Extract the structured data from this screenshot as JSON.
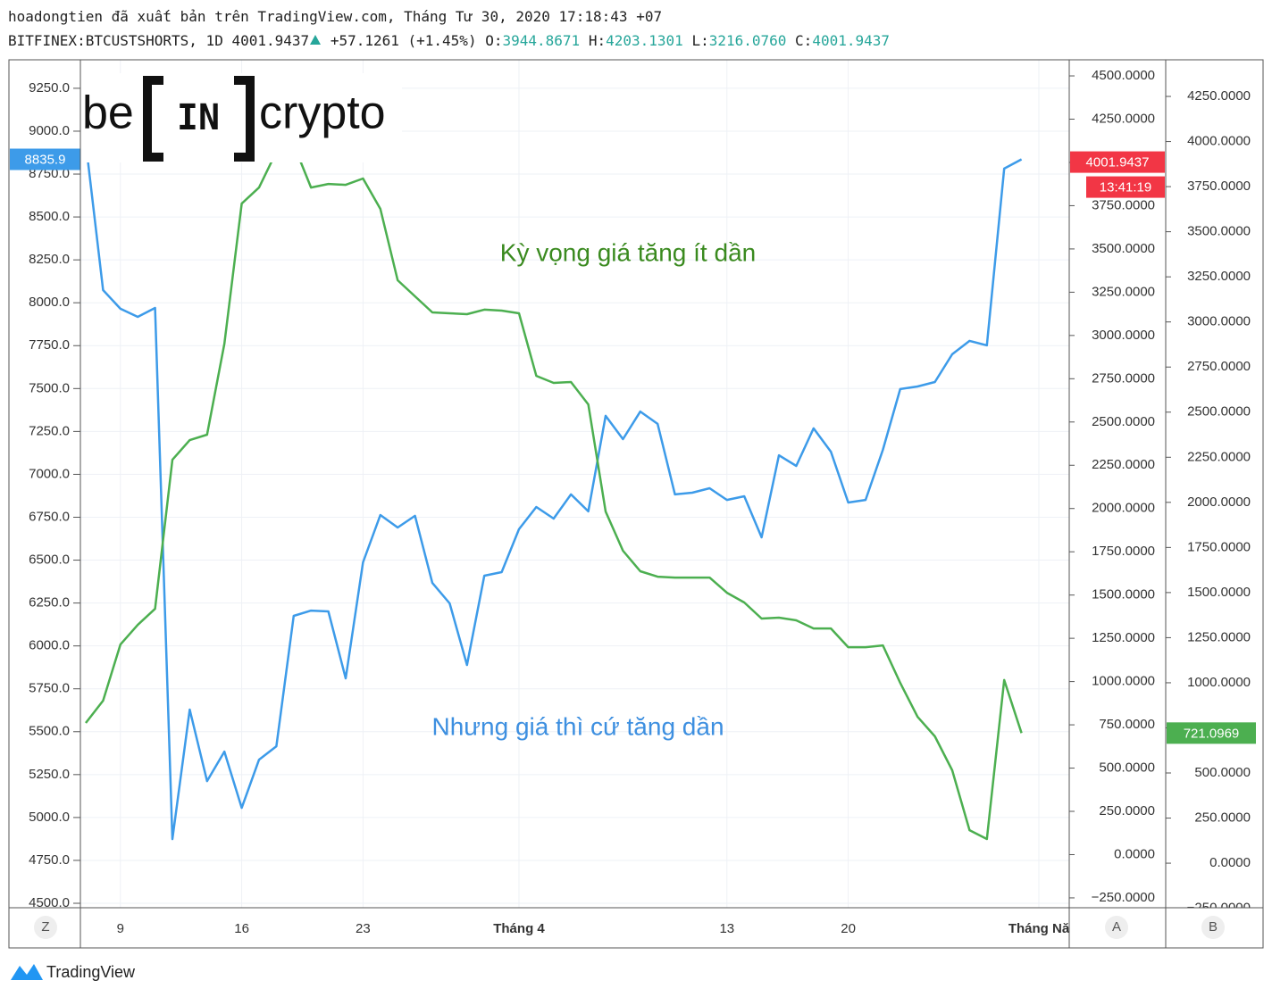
{
  "header": {
    "line1": "hoadongtien đã xuất bản trên TradingView.com, Tháng Tư 30, 2020 17:18:43 +07",
    "symbol": "BITFINEX:BTCUSTSHORTS, 1D",
    "last": "4001.9437",
    "change": "+57.1261 (+1.45%)",
    "ohlc": [
      {
        "key": "O:",
        "value": "3944.8671"
      },
      {
        "key": "H:",
        "value": "4203.1301"
      },
      {
        "key": "L:",
        "value": "3216.0760"
      },
      {
        "key": "C:",
        "value": "4001.9437"
      }
    ]
  },
  "logo": {
    "left": "be",
    "mid": "IN",
    "right": "crypto"
  },
  "footer": "TradingView",
  "buttons": [
    "Z",
    "A",
    "B"
  ],
  "chart_data": {
    "type": "line",
    "annotations": [
      "Kỳ vọng giá tăng ít dần",
      "Nhưng giá thì cứ tăng dần"
    ],
    "categories": [
      null,
      null,
      "9",
      null,
      null,
      null,
      null,
      null,
      null,
      "16",
      null,
      null,
      null,
      null,
      null,
      null,
      "23",
      null,
      null,
      null,
      null,
      null,
      null,
      null,
      null,
      "Tháng 4",
      null,
      null,
      null,
      null,
      null,
      null,
      null,
      null,
      null,
      null,
      null,
      "13",
      null,
      null,
      null,
      null,
      null,
      null,
      "20",
      null,
      null,
      null,
      null,
      null,
      null,
      null,
      null,
      null,
      null,
      "Tháng Nă"
    ],
    "series": [
      {
        "color": "#3d9be9",
        "axis": "y",
        "values": [
          8933,
          8074,
          7965,
          7918,
          7970,
          4874,
          5629,
          5212,
          5384,
          5056,
          5337,
          5415,
          6175,
          6206,
          6201,
          5811,
          6487,
          6763,
          6690,
          6758,
          6367,
          6248,
          5889,
          6409,
          6430,
          6680,
          6810,
          6742,
          6883,
          6784,
          7341,
          7205,
          7366,
          7294,
          6883,
          6893,
          6919,
          6851,
          6872,
          6633,
          7111,
          7049,
          7268,
          7132,
          6836,
          6851,
          7143,
          7497,
          7512,
          7538,
          7700,
          7778,
          7752,
          8782,
          8835.9,
          null
        ]
      },
      {
        "color": "#4caf50",
        "axis": "y3",
        "values": [
          777,
          901,
          1212,
          1321,
          1410,
          2236,
          2345,
          2375,
          2879,
          3656,
          3745,
          3943,
          3983,
          3745,
          3765,
          3760,
          3795,
          3627,
          3231,
          3142,
          3053,
          3048,
          3043,
          3068,
          3063,
          3048,
          2701,
          2662,
          2667,
          2543,
          1949,
          1732,
          1618,
          1588,
          1583,
          1583,
          1583,
          1499,
          1445,
          1356,
          1361,
          1346,
          1301,
          1301,
          1197,
          1197,
          1207,
          999,
          811,
          703,
          515,
          183,
          134,
          1015,
          721.0969,
          null
        ]
      }
    ],
    "y2_marker": {
      "value": 4001.9437,
      "color": "#f23645",
      "countdown": "13:41:19"
    },
    "ylim": [
      4474,
      9416
    ],
    "yticks": [
      {
        "value": 4500,
        "label": "4500.0"
      },
      {
        "value": 4750,
        "label": "4750.0"
      },
      {
        "value": 5000,
        "label": "5000.0"
      },
      {
        "value": 5250,
        "label": "5250.0"
      },
      {
        "value": 5500,
        "label": "5500.0"
      },
      {
        "value": 5750,
        "label": "5750.0"
      },
      {
        "value": 6000,
        "label": "6000.0"
      },
      {
        "value": 6250,
        "label": "6250.0"
      },
      {
        "value": 6500,
        "label": "6500.0"
      },
      {
        "value": 6750,
        "label": "6750.0"
      },
      {
        "value": 7000,
        "label": "7000.0"
      },
      {
        "value": 7250,
        "label": "7250.0"
      },
      {
        "value": 7500,
        "label": "7500.0"
      },
      {
        "value": 7750,
        "label": "7750.0"
      },
      {
        "value": 8000,
        "label": "8000.0"
      },
      {
        "value": 8250,
        "label": "8250.0"
      },
      {
        "value": 8500,
        "label": "8500.0"
      },
      {
        "value": 8750,
        "label": "8750.0"
      },
      {
        "value": 9000,
        "label": "9000.0"
      },
      {
        "value": 9250,
        "label": "9250.0"
      }
    ],
    "y2lim": [
      -307,
      4593
    ],
    "y2ticks": [
      {
        "value": -250,
        "label": "−250.0000"
      },
      {
        "value": 0,
        "label": "0.0000"
      },
      {
        "value": 250,
        "label": "250.0000"
      },
      {
        "value": 500,
        "label": "500.0000"
      },
      {
        "value": 750,
        "label": "750.0000"
      },
      {
        "value": 1000,
        "label": "1000.0000"
      },
      {
        "value": 1250,
        "label": "1250.0000"
      },
      {
        "value": 1500,
        "label": "1500.0000"
      },
      {
        "value": 1750,
        "label": "1750.0000"
      },
      {
        "value": 2000,
        "label": "2000.0000"
      },
      {
        "value": 2250,
        "label": "2250.0000"
      },
      {
        "value": 2500,
        "label": "2500.0000"
      },
      {
        "value": 2750,
        "label": "2750.0000"
      },
      {
        "value": 3000,
        "label": "3000.0000"
      },
      {
        "value": 3250,
        "label": "3250.0000"
      },
      {
        "value": 3500,
        "label": "3500.0000"
      },
      {
        "value": 3750,
        "label": "3750.0000"
      },
      {
        "value": 4000,
        "label": "4000.0000"
      },
      {
        "value": 4250,
        "label": "4250.0000"
      },
      {
        "value": 4500,
        "label": "4500.0000"
      }
    ],
    "y3lim": [
      -247,
      4453
    ],
    "y3ticks": [
      {
        "value": -250,
        "label": "−250.0000"
      },
      {
        "value": 0,
        "label": "0.0000"
      },
      {
        "value": 250,
        "label": "250.0000"
      },
      {
        "value": 500,
        "label": "500.0000"
      },
      {
        "value": 750,
        "label": "750.0000"
      },
      {
        "value": 1000,
        "label": "1000.0000"
      },
      {
        "value": 1250,
        "label": "1250.0000"
      },
      {
        "value": 1500,
        "label": "1500.0000"
      },
      {
        "value": 1750,
        "label": "1750.0000"
      },
      {
        "value": 2000,
        "label": "2000.0000"
      },
      {
        "value": 2250,
        "label": "2250.0000"
      },
      {
        "value": 2500,
        "label": "2500.0000"
      },
      {
        "value": 2750,
        "label": "2750.0000"
      },
      {
        "value": 3000,
        "label": "3000.0000"
      },
      {
        "value": 3250,
        "label": "3250.0000"
      },
      {
        "value": 3500,
        "label": "3500.0000"
      },
      {
        "value": 3750,
        "label": "3750.0000"
      },
      {
        "value": 4000,
        "label": "4000.0000"
      },
      {
        "value": 4250,
        "label": "4250.0000"
      }
    ],
    "grid": true
  }
}
